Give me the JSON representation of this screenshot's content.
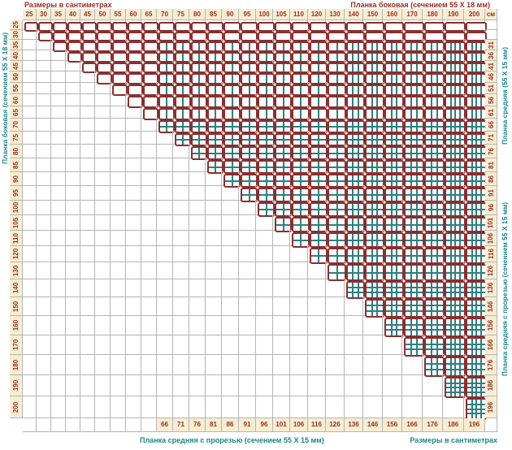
{
  "titles": {
    "top_left": "Размеры в сантиметрах",
    "top_right": "Планка боковая (сечением 55 X 18 мм)",
    "left_axis": "Планка боковая (сечением 55 X 18 мм)",
    "right_axis_top": "Планка средняя (55 X 15 мм)",
    "right_axis_bottom": "Планка средняя с прорезью (сечением 55 X 15 мм)",
    "bottom_left": "Планка средняя с прорезью (сечением 55 X 15 мм)",
    "bottom_right": "Размеры в сантиметрах",
    "unit": "см"
  },
  "colors": {
    "header_bg": "#f6eed3",
    "number_text": "#9c2d20",
    "frame_border": "#8b2e2e",
    "slat_line": "#2e7f80",
    "teal_text": "#19868c",
    "grid_line": "#b5b5b5"
  },
  "chart_data": {
    "type": "table",
    "title": "Размеры в сантиметрах",
    "columns_cm": [
      25,
      30,
      35,
      40,
      45,
      50,
      55,
      60,
      65,
      70,
      75,
      80,
      85,
      90,
      95,
      100,
      105,
      110,
      120,
      130,
      140,
      150,
      160,
      170,
      180,
      190,
      200
    ],
    "rows_cm": [
      25,
      30,
      35,
      40,
      45,
      50,
      55,
      60,
      65,
      70,
      75,
      80,
      85,
      90,
      95,
      100,
      105,
      110,
      120,
      130,
      140,
      150,
      160,
      170,
      180,
      190,
      200
    ],
    "right_column_header": "см",
    "right_column_values": [
      null,
      null,
      31,
      36,
      41,
      46,
      51,
      56,
      61,
      66,
      71,
      76,
      81,
      86,
      91,
      96,
      101,
      106,
      116,
      126,
      136,
      146,
      156,
      166,
      176,
      186,
      196
    ],
    "bottom_row_values": [
      null,
      null,
      null,
      null,
      null,
      null,
      null,
      null,
      null,
      66,
      71,
      76,
      81,
      86,
      91,
      96,
      101,
      106,
      116,
      126,
      136,
      146,
      156,
      166,
      176,
      186,
      196
    ],
    "cell_rule": "frame pictogram shown only when column size >= row size (upper-right triangle)",
    "frame_rules": {
      "line_thresholds_cm": [
        70,
        140,
        190
      ],
      "min_row_for_vertical_cm": 35,
      "pictogram_rule": "vertical slat lines: 1 for 70-130 cm columns, 2 for 140-180, 3 for 190-200 (none when row < 35); horizontal slat lines: same thresholds applied to row size"
    }
  }
}
